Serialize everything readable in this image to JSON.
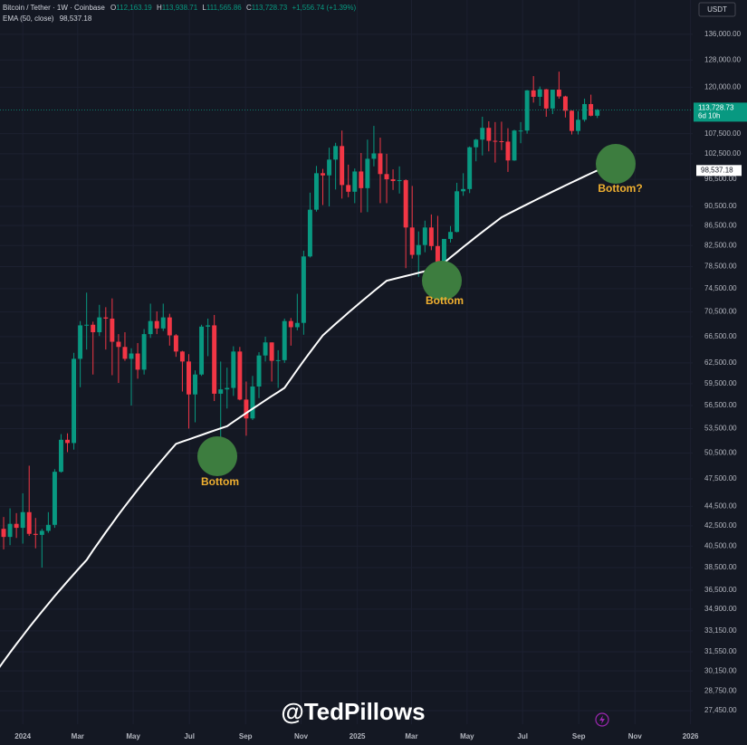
{
  "chart_data": {
    "type": "candlestick",
    "header": {
      "symbol": "Bitcoin / Tether · 1W · Coinbase",
      "ohlc_letters": [
        "O",
        "H",
        "L",
        "C"
      ],
      "ohlc_labels": [
        "112,163.19",
        "113,938.71",
        "111,565.86",
        "113,728.73"
      ],
      "change_label": "+1,556.74 (+1.39%)"
    },
    "currency": "USDT",
    "countdown": "6d 10h",
    "categories": [
      null,
      null,
      null,
      null,
      null,
      null,
      null,
      null,
      null,
      null,
      null,
      null,
      null,
      null,
      null,
      null,
      null,
      null,
      null,
      null,
      null,
      null,
      null,
      null,
      null,
      null,
      null,
      null,
      null,
      null,
      null,
      null,
      null,
      null,
      null,
      null,
      null,
      null,
      null,
      null,
      null,
      null,
      null,
      null,
      null,
      null,
      null,
      null,
      null,
      null,
      null,
      null,
      null,
      null,
      null,
      null,
      null,
      null,
      null,
      null,
      null,
      null,
      null,
      null,
      null,
      null,
      null,
      null,
      null,
      null,
      null,
      null,
      null,
      null,
      null,
      null,
      null,
      null,
      null,
      null,
      null,
      null,
      null,
      null,
      null,
      null,
      null,
      null,
      null,
      null,
      null,
      null,
      null,
      null,
      null
    ],
    "open": [
      39970,
      42200,
      41400,
      42700,
      42300,
      43900,
      41700,
      41600,
      42000,
      42600,
      48300,
      52100,
      51700,
      63100,
      68300,
      68400,
      67200,
      69600,
      69400,
      65700,
      64900,
      63100,
      63900,
      61500,
      66900,
      69000,
      67800,
      69600,
      66700,
      64200,
      62700,
      58000,
      60800,
      68100,
      68300,
      58100,
      58700,
      58900,
      64200,
      57300,
      54800,
      59100,
      63600,
      65600,
      62800,
      62900,
      69000,
      68000,
      68700,
      80400,
      89800,
      97900,
      97400,
      101100,
      104400,
      95200,
      93700,
      98300,
      94500,
      101300,
      102600,
      97700,
      96500,
      96100,
      96300,
      86100,
      80700,
      82600,
      86100,
      82400,
      78400,
      83800,
      85200,
      93800,
      94300,
      104100,
      106000,
      109000,
      105700,
      105600,
      105500,
      100900,
      108300,
      108300,
      119100,
      117300,
      119400,
      114100,
      119300,
      117400,
      113500,
      108200,
      111100,
      115300,
      112163.19
    ],
    "high": [
      44730,
      43400,
      44300,
      43800,
      45900,
      49000,
      43300,
      42200,
      43900,
      48600,
      52800,
      52900,
      64000,
      69000,
      73800,
      68900,
      71700,
      71300,
      72800,
      66900,
      67200,
      64700,
      65500,
      67700,
      71900,
      70600,
      71900,
      70200,
      66900,
      64300,
      63800,
      61400,
      68400,
      69400,
      70000,
      62700,
      61800,
      65000,
      64900,
      59800,
      60600,
      64100,
      66500,
      65600,
      64400,
      69400,
      69500,
      73600,
      81500,
      93500,
      99600,
      98900,
      104000,
      105200,
      108300,
      99900,
      99000,
      102700,
      106000,
      109500,
      106500,
      102500,
      98800,
      99500,
      96500,
      95000,
      85300,
      87500,
      88800,
      88500,
      83600,
      86400,
      95700,
      97900,
      104300,
      106200,
      111900,
      110700,
      110500,
      110600,
      108900,
      108500,
      110500,
      119200,
      123200,
      120200,
      119500,
      119300,
      124500,
      117600,
      113600,
      113400,
      116800,
      117900,
      113938.71
    ],
    "low": [
      39950,
      40200,
      40600,
      41300,
      40750,
      41500,
      40300,
      38500,
      41800,
      42300,
      48200,
      50600,
      50900,
      59000,
      64500,
      60800,
      66600,
      64500,
      60700,
      59600,
      62800,
      56500,
      60200,
      60800,
      66300,
      66900,
      67400,
      65100,
      63400,
      58400,
      53500,
      54300,
      60600,
      63500,
      57100,
      49100,
      56100,
      57800,
      57200,
      52600,
      54600,
      57500,
      62700,
      59800,
      58900,
      62500,
      65100,
      67500,
      66800,
      80200,
      89400,
      90800,
      90500,
      94200,
      92200,
      92500,
      91200,
      89200,
      89300,
      99500,
      91200,
      91200,
      94100,
      93300,
      78200,
      80000,
      76600,
      81200,
      81600,
      77100,
      74500,
      83100,
      85100,
      92800,
      93400,
      100700,
      102100,
      103100,
      100400,
      103400,
      98200,
      100800,
      105100,
      107500,
      115700,
      114800,
      111900,
      112600,
      116800,
      111700,
      107300,
      107300,
      110600,
      112000,
      111565.86
    ],
    "close": [
      42200,
      41400,
      42700,
      42300,
      43900,
      41700,
      41600,
      42000,
      42600,
      48300,
      52100,
      51700,
      63100,
      68300,
      68400,
      67200,
      69600,
      69400,
      65700,
      64900,
      63100,
      63900,
      61500,
      66900,
      69000,
      67800,
      69600,
      66700,
      64200,
      62700,
      58000,
      60800,
      68100,
      68300,
      58100,
      58700,
      58900,
      64200,
      57300,
      54800,
      59100,
      63600,
      65600,
      62800,
      62900,
      69000,
      68000,
      68700,
      80400,
      89800,
      97900,
      97400,
      101100,
      104400,
      95200,
      93700,
      98300,
      94500,
      101300,
      102600,
      97700,
      96500,
      96100,
      96300,
      86100,
      80700,
      82600,
      86100,
      82400,
      78400,
      83800,
      85200,
      93800,
      94300,
      104100,
      106000,
      109000,
      105700,
      105600,
      105500,
      100900,
      108300,
      108300,
      119100,
      117300,
      119400,
      114100,
      119300,
      117400,
      113500,
      108200,
      111100,
      115300,
      112172,
      113728.73
    ],
    "up_color": "#089981",
    "down_color": "#f23645",
    "ema": {
      "name": "EMA (50, close)",
      "value_label": "98,537.18",
      "color": "#ffffff",
      "values": [
        30200,
        30840,
        31490,
        32130,
        32770,
        33420,
        34060,
        34700,
        35340,
        35990,
        36630,
        37270,
        37910,
        38560,
        39200,
        40090,
        40970,
        41860,
        42740,
        43630,
        44520,
        45400,
        46290,
        47170,
        48060,
        48940,
        49830,
        50710,
        51600,
        51880,
        52150,
        52430,
        52700,
        52980,
        53250,
        53530,
        53800,
        54370,
        54930,
        55500,
        56070,
        56630,
        57200,
        57770,
        58330,
        58900,
        60200,
        61500,
        62800,
        64100,
        65400,
        66700,
        67620,
        68540,
        69460,
        70380,
        71300,
        72220,
        73140,
        74060,
        74980,
        75900,
        76190,
        76480,
        76760,
        77050,
        77340,
        77630,
        77910,
        78200,
        79200,
        80200,
        81200,
        82200,
        83200,
        84200,
        85200,
        86200,
        87200,
        88200,
        88890,
        89580,
        90270,
        90960,
        91650,
        92340,
        93030,
        93720,
        94410,
        95100,
        95790,
        96480,
        97170,
        97860,
        98537.18
      ]
    },
    "log_scale": true,
    "xlim": [
      0.43,
      108.94
    ],
    "xticks": [
      {
        "value": 4,
        "label": "2024"
      },
      {
        "value": 12.6,
        "label": "Mar"
      },
      {
        "value": 21.3,
        "label": "May"
      },
      {
        "value": 30.1,
        "label": "Jul"
      },
      {
        "value": 38.9,
        "label": "Sep"
      },
      {
        "value": 47.6,
        "label": "Nov"
      },
      {
        "value": 56.4,
        "label": "2025"
      },
      {
        "value": 64.9,
        "label": "Mar"
      },
      {
        "value": 73.6,
        "label": "May"
      },
      {
        "value": 82.3,
        "label": "Jul"
      },
      {
        "value": 91.1,
        "label": "Sep"
      },
      {
        "value": 99.9,
        "label": "Nov"
      },
      {
        "value": 108.6,
        "label": "2026"
      }
    ],
    "ylim": [
      26580,
      147500
    ],
    "yticks": [
      {
        "value": 136000,
        "label": "136,000.00"
      },
      {
        "value": 128000,
        "label": "128,000.00"
      },
      {
        "value": 120000,
        "label": "120,000.00"
      },
      {
        "value": 107500,
        "label": "107,500.00"
      },
      {
        "value": 102500,
        "label": "102,500.00"
      },
      {
        "value": 96500,
        "label": "96,500.00"
      },
      {
        "value": 90500,
        "label": "90,500.00"
      },
      {
        "value": 86500,
        "label": "86,500.00"
      },
      {
        "value": 82500,
        "label": "82,500.00"
      },
      {
        "value": 78500,
        "label": "78,500.00"
      },
      {
        "value": 74500,
        "label": "74,500.00"
      },
      {
        "value": 70500,
        "label": "70,500.00"
      },
      {
        "value": 66500,
        "label": "66,500.00"
      },
      {
        "value": 62500,
        "label": "62,500.00"
      },
      {
        "value": 59500,
        "label": "59,500.00"
      },
      {
        "value": 56500,
        "label": "56,500.00"
      },
      {
        "value": 53500,
        "label": "53,500.00"
      },
      {
        "value": 50500,
        "label": "50,500.00"
      },
      {
        "value": 47500,
        "label": "47,500.00"
      },
      {
        "value": 44500,
        "label": "44,500.00"
      },
      {
        "value": 42500,
        "label": "42,500.00"
      },
      {
        "value": 40500,
        "label": "40,500.00"
      },
      {
        "value": 38500,
        "label": "38,500.00"
      },
      {
        "value": 36500,
        "label": "36,500.00"
      },
      {
        "value": 34900,
        "label": "34,900.00"
      },
      {
        "value": 33150,
        "label": "33,150.00"
      },
      {
        "value": 31550,
        "label": "31,550.00"
      },
      {
        "value": 30150,
        "label": "30,150.00"
      },
      {
        "value": 28750,
        "label": "28,750.00"
      },
      {
        "value": 27450,
        "label": "27,450.00"
      }
    ],
    "annotations": [
      "Bottom",
      "Bottom",
      "Bottom?"
    ],
    "watermark": "@TedPillows"
  }
}
